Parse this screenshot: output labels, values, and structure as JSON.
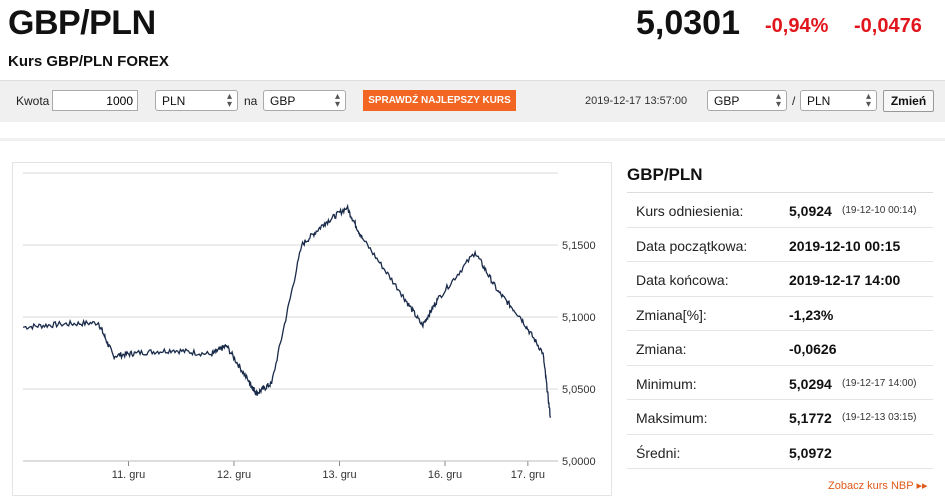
{
  "header": {
    "pair": "GBP/PLN",
    "subtitle": "Kurs GBP/PLN FOREX",
    "price": "5,0301",
    "change_pct": "-0,94%",
    "change_abs": "-0,0476"
  },
  "toolbar": {
    "amount_label": "Kwota",
    "amount_value": "1000",
    "from_currency": "PLN",
    "na_label": "na",
    "to_currency": "GBP",
    "best_rate_button": "SPRAWDŹ NAJLEPSZY KURS",
    "timestamp": "2019-12-17 13:57:00",
    "pair_base": "GBP",
    "separator": "/",
    "pair_quote": "PLN",
    "change_button": "Zmień"
  },
  "stats": {
    "title": "GBP/PLN",
    "rows": [
      {
        "label": "Kurs odniesienia:",
        "value": "5,0924",
        "ts": "(19-12-10 00:14)"
      },
      {
        "label": "Data początkowa:",
        "value": "2019-12-10 00:15",
        "ts": ""
      },
      {
        "label": "Data końcowa:",
        "value": "2019-12-17 14:00",
        "ts": ""
      },
      {
        "label": "Zmiana[%]:",
        "value": "-1,23%",
        "ts": ""
      },
      {
        "label": "Zmiana:",
        "value": "-0,0626",
        "ts": ""
      },
      {
        "label": "Minimum:",
        "value": "5,0294",
        "ts": "(19-12-17 14:00)"
      },
      {
        "label": "Maksimum:",
        "value": "5,1772",
        "ts": "(19-12-13 03:15)"
      },
      {
        "label": "Średni:",
        "value": "5,0972",
        "ts": ""
      }
    ],
    "nbp_link": "Zobacz kurs NBP ▸▸"
  },
  "colors": {
    "accent": "#f26522",
    "negative": "#e0161c",
    "line": "#1a2b4a"
  },
  "chart_data": {
    "type": "line",
    "x_ticks": [
      "11. gru",
      "12. gru",
      "13. gru",
      "16. gru",
      "17. gru"
    ],
    "y_ticks": [
      "5,1500",
      "5,1000",
      "5,0500",
      "5,0000"
    ],
    "ylim": [
      5.0,
      5.2
    ],
    "series": [
      {
        "x": [
          0,
          0.5,
          1,
          1.2,
          1.5,
          2,
          2.5,
          2.7,
          3,
          3.1,
          3.3,
          3.7,
          4,
          4.3,
          4.5,
          5,
          5.3,
          5.5,
          6,
          6.3,
          6.6,
          6.9,
          7
        ],
        "y": [
          5.093,
          5.095,
          5.096,
          5.073,
          5.075,
          5.077,
          5.074,
          5.08,
          5.055,
          5.047,
          5.054,
          5.15,
          5.165,
          5.176,
          5.155,
          5.118,
          5.094,
          5.112,
          5.145,
          5.118,
          5.1,
          5.075,
          5.03
        ]
      }
    ]
  }
}
